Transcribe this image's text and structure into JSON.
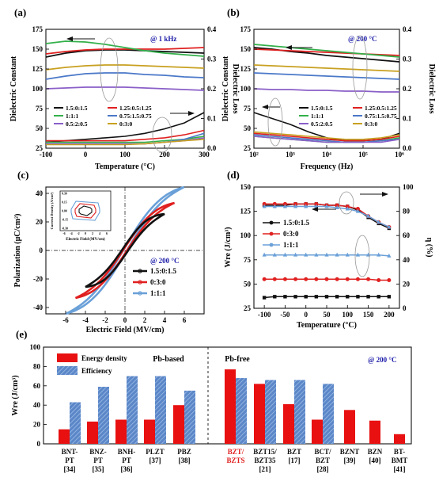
{
  "figure": {
    "panel_labels": [
      "(a)",
      "(b)",
      "(c)",
      "(d)",
      "(e)"
    ]
  },
  "chart_data": [
    {
      "panel": "(a)",
      "type": "line",
      "condition": "@ 1 kHz",
      "xlabel": "Temperature (°C)",
      "ylabel": "Dielectric Constant",
      "y2label": "Dielectric Loss",
      "xlim": [
        -100,
        300
      ],
      "ylim": [
        25,
        175
      ],
      "y2lim": [
        0.0,
        0.4
      ],
      "xticks": [
        "-100",
        "0",
        "100",
        "200",
        "300"
      ],
      "yticks": [
        "25",
        "50",
        "75",
        "100",
        "125",
        "150",
        "175"
      ],
      "y2ticks": [
        "0.0",
        "0.1",
        "0.2",
        "0.3",
        "0.4"
      ],
      "legend": [
        "1.5:0:1.5",
        "1.25:0.5:1.25",
        "1:1:1",
        "0.75:1.5:0.75",
        "0.5:2:0.5",
        "0:3:0"
      ],
      "colors": [
        "#111111",
        "#e02020",
        "#33b04a",
        "#4a78c8",
        "#8a5fc8",
        "#c8a020"
      ],
      "x": [
        -100,
        -50,
        0,
        50,
        100,
        150,
        200,
        250,
        300
      ],
      "series": [
        {
          "name": "1.5:0:1.5",
          "values": [
            140,
            145,
            148,
            149,
            149,
            148,
            147,
            146,
            145
          ]
        },
        {
          "name": "1.25:0.5:1.25",
          "values": [
            144,
            147,
            149,
            150,
            150,
            150,
            150,
            151,
            152
          ]
        },
        {
          "name": "1:1:1",
          "values": [
            157,
            160,
            159,
            156,
            152,
            148,
            145,
            143,
            141
          ]
        },
        {
          "name": "0.75:1.5:0.75",
          "values": [
            112,
            116,
            119,
            120,
            120,
            118,
            117,
            115,
            114
          ]
        },
        {
          "name": "0.5:2:0.5",
          "values": [
            100,
            101,
            102,
            102,
            102,
            101,
            100,
            99,
            98
          ]
        },
        {
          "name": "0:3:0",
          "values": [
            124,
            127,
            129,
            130,
            130,
            129,
            128,
            127,
            126
          ]
        }
      ],
      "loss_series": [
        {
          "name": "1.5:0:1.5",
          "values": [
            0.02,
            0.025,
            0.03,
            0.035,
            0.04,
            0.05,
            0.065,
            0.085,
            0.12
          ]
        },
        {
          "name": "1.25:0.5:1.25",
          "values": [
            0.025,
            0.025,
            0.025,
            0.025,
            0.025,
            0.03,
            0.035,
            0.045,
            0.06
          ]
        },
        {
          "name": "1:1:1",
          "values": [
            0.02,
            0.02,
            0.02,
            0.02,
            0.02,
            0.02,
            0.025,
            0.03,
            0.04
          ]
        },
        {
          "name": "0.75:1.5:0.75",
          "values": [
            0.015,
            0.015,
            0.015,
            0.015,
            0.015,
            0.015,
            0.02,
            0.03,
            0.05
          ]
        },
        {
          "name": "0.5:2:0.5",
          "values": [
            0.015,
            0.015,
            0.015,
            0.015,
            0.015,
            0.015,
            0.02,
            0.025,
            0.035
          ]
        },
        {
          "name": "0:3:0",
          "values": [
            0.012,
            0.012,
            0.012,
            0.012,
            0.012,
            0.015,
            0.02,
            0.025,
            0.03
          ]
        }
      ]
    },
    {
      "panel": "(b)",
      "type": "line",
      "condition": "@ 200 °C",
      "xlabel": "Frequency (Hz)",
      "ylabel": "Dielectric Constant",
      "y2label": "Dielectric Loss",
      "xscale": "log",
      "xlim": [
        100,
        1000000
      ],
      "ylim": [
        25,
        175
      ],
      "y2lim": [
        0.0,
        0.4
      ],
      "xticks": [
        "10²",
        "10³",
        "10⁴",
        "10⁵",
        "10⁶"
      ],
      "yticks": [
        "25",
        "50",
        "75",
        "100",
        "125",
        "150",
        "175"
      ],
      "y2ticks": [
        "0.0",
        "0.1",
        "0.2",
        "0.3",
        "0.4"
      ],
      "legend": [
        "1.5:0:1.5",
        "1.25:0.5:1.25",
        "1:1:1",
        "0.75:1.5:0.75",
        "0.5:2:0.5",
        "0:3:0"
      ],
      "colors": [
        "#111111",
        "#e02020",
        "#33b04a",
        "#4a78c8",
        "#8a5fc8",
        "#c8a020"
      ],
      "x": [
        100,
        316,
        1000,
        3162,
        10000,
        31623,
        100000,
        316228,
        1000000
      ],
      "series": [
        {
          "name": "1.5:0:1.5",
          "values": [
            152,
            150,
            147,
            145,
            142,
            140,
            138,
            136,
            134
          ]
        },
        {
          "name": "1.25:0.5:1.25",
          "values": [
            150,
            149,
            148,
            147,
            146,
            145,
            144,
            143,
            142
          ]
        },
        {
          "name": "1:1:1",
          "values": [
            156,
            154,
            152,
            150,
            148,
            146,
            144,
            142,
            140
          ]
        },
        {
          "name": "0.75:1.5:0.75",
          "values": [
            120,
            119,
            118,
            117,
            116,
            115,
            114,
            113,
            112
          ]
        },
        {
          "name": "0.5:2:0.5",
          "values": [
            100,
            99,
            99,
            98,
            98,
            97,
            97,
            96,
            96
          ]
        },
        {
          "name": "0:3:0",
          "values": [
            130,
            129,
            128,
            127,
            126,
            125,
            124,
            123,
            122
          ]
        }
      ],
      "loss_series": [
        {
          "name": "1.5:0:1.5",
          "values": [
            0.12,
            0.1,
            0.08,
            0.055,
            0.035,
            0.025,
            0.025,
            0.03,
            0.05
          ]
        },
        {
          "name": "1.25:0.5:1.25",
          "values": [
            0.05,
            0.045,
            0.04,
            0.035,
            0.03,
            0.025,
            0.025,
            0.03,
            0.04
          ]
        },
        {
          "name": "1:1:1",
          "values": [
            0.04,
            0.035,
            0.03,
            0.025,
            0.02,
            0.02,
            0.02,
            0.025,
            0.035
          ]
        },
        {
          "name": "0.75:1.5:0.75",
          "values": [
            0.045,
            0.04,
            0.035,
            0.03,
            0.025,
            0.02,
            0.02,
            0.025,
            0.03
          ]
        },
        {
          "name": "0.5:2:0.5",
          "values": [
            0.04,
            0.035,
            0.03,
            0.025,
            0.02,
            0.02,
            0.02,
            0.02,
            0.03
          ]
        },
        {
          "name": "0:3:0",
          "values": [
            0.055,
            0.05,
            0.045,
            0.04,
            0.035,
            0.03,
            0.03,
            0.035,
            0.045
          ]
        }
      ]
    },
    {
      "panel": "(c)",
      "type": "line",
      "condition": "@ 200 °C",
      "xlabel": "Electric Field (MV/cm)",
      "ylabel": "Polarization (μC/cm²)",
      "xlim": [
        -8,
        8
      ],
      "ylim": [
        -40,
        40
      ],
      "xticks": [
        "-6",
        "-4",
        "-2",
        "0",
        "2",
        "4",
        "6"
      ],
      "yticks": [
        "-40",
        "-20",
        "0",
        "20",
        "40"
      ],
      "legend": [
        "1.5:0:1.5",
        "0:3:0",
        "1:1:1"
      ],
      "colors": [
        "#111111",
        "#e02020",
        "#6aa0d8"
      ],
      "series": [
        {
          "name": "1.5:0:1.5",
          "emax": 4,
          "pmax": 23,
          "pr": 3
        },
        {
          "name": "0:3:0",
          "emax": 5,
          "pmax": 30,
          "pr": 2
        },
        {
          "name": "1:1:1",
          "emax": 6,
          "pmax": 40,
          "pr": 2
        }
      ],
      "inset": {
        "xlabel": "Electric Field (MV/cm)",
        "ylabel": "Current Density (A/cm²)",
        "xticks": [
          "-6",
          "-4",
          "-2",
          "0",
          "2",
          "4",
          "6"
        ],
        "yticks": [
          "-0.30",
          "-0.15",
          "0.00",
          "0.15",
          "0.30"
        ]
      }
    },
    {
      "panel": "(d)",
      "type": "line",
      "xlabel": "Temperature (°C)",
      "ylabel": "Wre (J/cm³)",
      "y2label": "η (%)",
      "xlim": [
        -125,
        225
      ],
      "ylim": [
        25,
        150
      ],
      "y2lim": [
        0,
        100
      ],
      "xticks": [
        "-100",
        "-50",
        "0",
        "50",
        "100",
        "150",
        "200"
      ],
      "yticks": [
        "25",
        "50",
        "75",
        "100",
        "125",
        "150"
      ],
      "y2ticks": [
        "0",
        "20",
        "40",
        "60",
        "80",
        "100"
      ],
      "legend": [
        "1.5:0:1.5",
        "0:3:0",
        "1:1:1"
      ],
      "colors": [
        "#111111",
        "#e02020",
        "#6aa0d8"
      ],
      "x": [
        -100,
        -75,
        -50,
        -25,
        0,
        25,
        50,
        75,
        100,
        125,
        150,
        175,
        200
      ],
      "series": [
        {
          "name": "1.5:0:1.5",
          "values": [
            36,
            37,
            37,
            37,
            37,
            37,
            37,
            37,
            37,
            37,
            37,
            37,
            37
          ]
        },
        {
          "name": "0:3:0",
          "values": [
            55,
            55,
            55,
            55,
            55,
            55,
            55,
            55,
            55,
            55,
            55,
            54,
            54
          ]
        },
        {
          "name": "1:1:1",
          "values": [
            80,
            80,
            80,
            80,
            80,
            80,
            80,
            80,
            80,
            80,
            80,
            80,
            79
          ]
        }
      ],
      "eff_series": [
        {
          "name": "1.5:0:1.5",
          "values": [
            85,
            85,
            85,
            86,
            86,
            86,
            85,
            85,
            84,
            81,
            75,
            70,
            66
          ]
        },
        {
          "name": "0:3:0",
          "values": [
            86,
            86,
            86,
            86,
            86,
            86,
            85,
            85,
            84,
            82,
            76,
            71,
            67
          ]
        },
        {
          "name": "1:1:1",
          "values": [
            84,
            84,
            84,
            84,
            84,
            84,
            84,
            83,
            82,
            80,
            76,
            71,
            67
          ]
        }
      ]
    },
    {
      "panel": "(e)",
      "type": "bar",
      "condition": "@ 200 °C",
      "ylabel": "Wre (J/cm³)",
      "ylim": [
        0,
        100
      ],
      "yticks": [
        "0",
        "20",
        "40",
        "60",
        "80",
        "100"
      ],
      "legend": [
        "Energy density",
        "Efficiency"
      ],
      "colors": {
        "energy": "#e81010",
        "efficiency": "#4a78c0"
      },
      "group_labels": [
        "Pb-based",
        "Pb-free"
      ],
      "categories": [
        {
          "name": "BNT-PT",
          "ref": "[34]"
        },
        {
          "name": "BNZ-PT",
          "ref": "[35]"
        },
        {
          "name": "BNH-PT",
          "ref": "[36]"
        },
        {
          "name": "PLZT",
          "ref": "[37]"
        },
        {
          "name": "PBZ",
          "ref": "[38]"
        },
        {
          "name": "BZT/BZTS",
          "ref": ""
        },
        {
          "name": "BZT15/BZT35",
          "ref": "[21]"
        },
        {
          "name": "BZT",
          "ref": "[17]"
        },
        {
          "name": "BCT/BZT",
          "ref": "[28]"
        },
        {
          "name": "BZNT",
          "ref": "[39]"
        },
        {
          "name": "BZN",
          "ref": "[40]"
        },
        {
          "name": "BT-BMT",
          "ref": "[41]"
        }
      ],
      "series": [
        {
          "name": "Energy density",
          "values": [
            15,
            23,
            25,
            25,
            40,
            77,
            62,
            41,
            25,
            35,
            24,
            10
          ]
        },
        {
          "name": "Efficiency",
          "values": [
            43,
            59,
            70,
            70,
            55,
            68,
            66,
            66,
            62,
            null,
            null,
            null
          ]
        }
      ]
    }
  ]
}
